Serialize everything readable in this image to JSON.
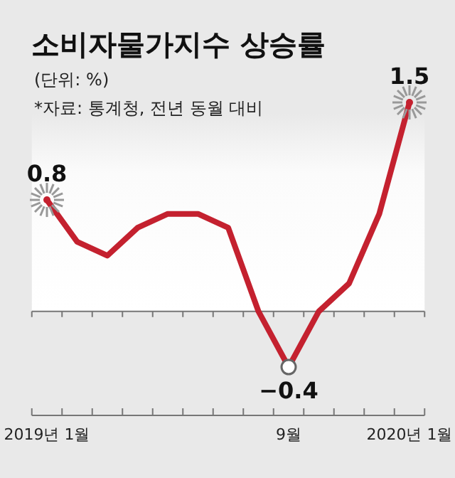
{
  "chart_data": {
    "type": "line",
    "title": "소비자물가지수 상승률",
    "subtitle": "(단위: %)",
    "annotations": [
      "*자료: 통계청, 전년 동월 대비"
    ],
    "categories": [
      "2019년 1월",
      null,
      null,
      null,
      null,
      null,
      null,
      null,
      "9월",
      null,
      null,
      null,
      "2020년 1월"
    ],
    "series": [
      {
        "color": "#c4212f",
        "values": [
          0.8,
          0.5,
          0.4,
          0.6,
          0.7,
          0.7,
          0.6,
          0.0,
          -0.4,
          0.0,
          0.2,
          0.7,
          1.5
        ],
        "value_labels": [
          "0.8",
          null,
          null,
          null,
          null,
          null,
          null,
          null,
          "−0.4",
          null,
          null,
          null,
          "1.5"
        ]
      }
    ],
    "ref_lines": [
      {
        "axis": "y",
        "value": 0,
        "color": "#777777"
      }
    ],
    "marker": "none"
  }
}
